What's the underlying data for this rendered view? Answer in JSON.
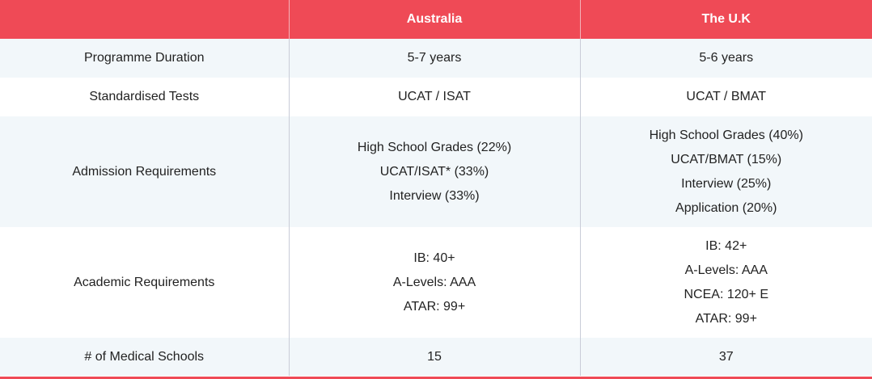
{
  "header": {
    "col0": "",
    "col1": "Australia",
    "col2": "The U.K"
  },
  "rows": [
    {
      "label": "Programme Duration",
      "australia": [
        "5-7 years"
      ],
      "uk": [
        "5-6 years"
      ]
    },
    {
      "label": "Standardised Tests",
      "australia": [
        "UCAT / ISAT"
      ],
      "uk": [
        "UCAT / BMAT"
      ]
    },
    {
      "label": "Admission Requirements",
      "australia": [
        "High School Grades (22%)",
        "UCAT/ISAT* (33%)",
        "Interview (33%)"
      ],
      "uk": [
        "High School Grades (40%)",
        "UCAT/BMAT (15%)",
        "Interview (25%)",
        "Application (20%)"
      ]
    },
    {
      "label": "Academic Requirements",
      "australia": [
        "IB: 40+",
        "A-Levels: AAA",
        "ATAR: 99+"
      ],
      "uk": [
        "IB: 42+",
        "A-Levels: AAA",
        "NCEA: 120+ E",
        "ATAR: 99+"
      ]
    },
    {
      "label": "# of Medical Schools",
      "australia": [
        "15"
      ],
      "uk": [
        "37"
      ]
    }
  ],
  "colors": {
    "header_bg": "#ef4a56",
    "header_text": "#ffffff",
    "alt_row_bg": "#f2f7fa"
  }
}
